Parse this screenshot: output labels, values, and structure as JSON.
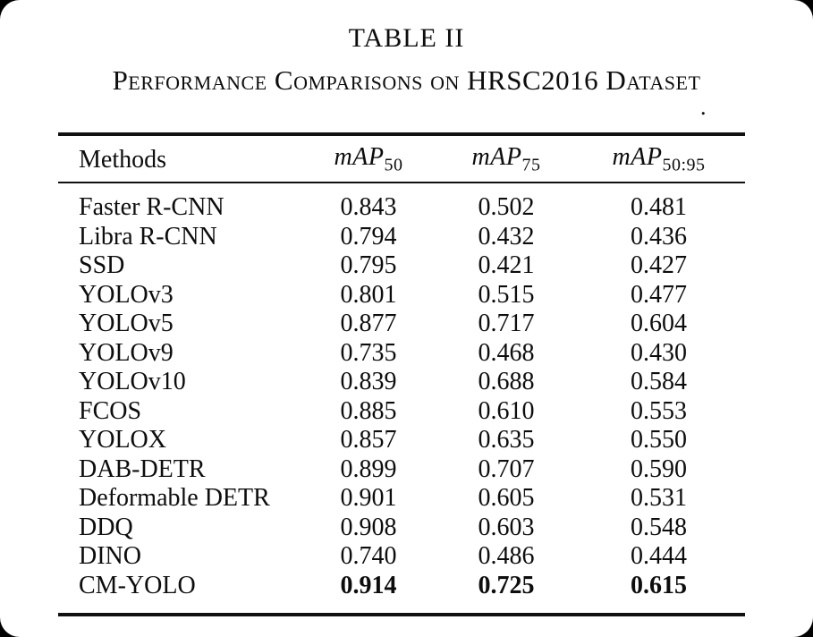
{
  "caption": {
    "label": "TABLE II",
    "title": "Performance Comparisons on HRSC2016 Dataset",
    "stray_period": "."
  },
  "colors": {
    "ink": "#0d0d0d",
    "page_background": "#ffffff",
    "outside_background": "#000000"
  },
  "table": {
    "columns": {
      "methods": "Methods",
      "metrics": [
        {
          "base": "mAP",
          "sub": "50"
        },
        {
          "base": "mAP",
          "sub": "75"
        },
        {
          "base": "mAP",
          "sub": "50:95"
        }
      ]
    },
    "rows": [
      {
        "method": "Faster R-CNN",
        "map50": "0.843",
        "map75": "0.502",
        "map50_95": "0.481",
        "bold_values": false
      },
      {
        "method": "Libra R-CNN",
        "map50": "0.794",
        "map75": "0.432",
        "map50_95": "0.436",
        "bold_values": false
      },
      {
        "method": "SSD",
        "map50": "0.795",
        "map75": "0.421",
        "map50_95": "0.427",
        "bold_values": false
      },
      {
        "method": "YOLOv3",
        "map50": "0.801",
        "map75": "0.515",
        "map50_95": "0.477",
        "bold_values": false
      },
      {
        "method": "YOLOv5",
        "map50": "0.877",
        "map75": "0.717",
        "map50_95": "0.604",
        "bold_values": false
      },
      {
        "method": "YOLOv9",
        "map50": "0.735",
        "map75": "0.468",
        "map50_95": "0.430",
        "bold_values": false
      },
      {
        "method": "YOLOv10",
        "map50": "0.839",
        "map75": "0.688",
        "map50_95": "0.584",
        "bold_values": false
      },
      {
        "method": "FCOS",
        "map50": "0.885",
        "map75": "0.610",
        "map50_95": "0.553",
        "bold_values": false
      },
      {
        "method": "YOLOX",
        "map50": "0.857",
        "map75": "0.635",
        "map50_95": "0.550",
        "bold_values": false
      },
      {
        "method": "DAB-DETR",
        "map50": "0.899",
        "map75": "0.707",
        "map50_95": "0.590",
        "bold_values": false
      },
      {
        "method": "Deformable DETR",
        "map50": "0.901",
        "map75": "0.605",
        "map50_95": "0.531",
        "bold_values": false
      },
      {
        "method": "DDQ",
        "map50": "0.908",
        "map75": "0.603",
        "map50_95": "0.548",
        "bold_values": false
      },
      {
        "method": "DINO",
        "map50": "0.740",
        "map75": "0.486",
        "map50_95": "0.444",
        "bold_values": false
      },
      {
        "method": "CM-YOLO",
        "map50": "0.914",
        "map75": "0.725",
        "map50_95": "0.615",
        "bold_values": true
      }
    ]
  }
}
